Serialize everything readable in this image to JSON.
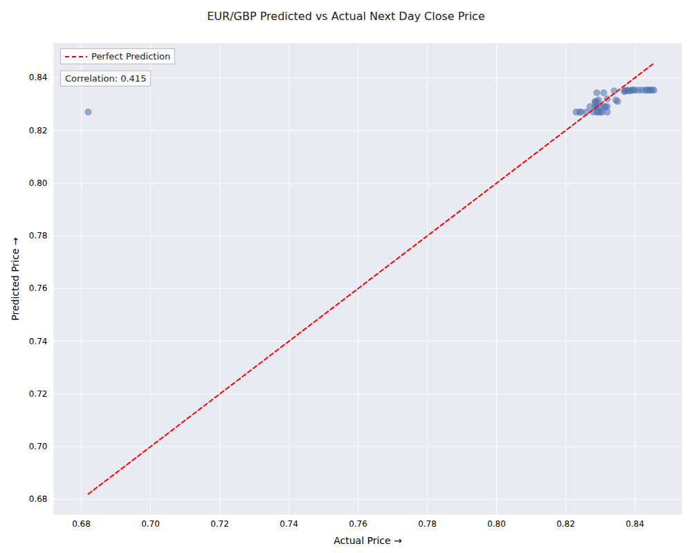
{
  "chart_data": {
    "type": "scatter",
    "title": "EUR/GBP Predicted vs Actual Next Day Close Price",
    "x_label": "Actual Price",
    "y_label": "Predicted Price",
    "annotation": "Correlation: 0.415",
    "series": [
      {
        "name": "Perfect Prediction",
        "type": "line",
        "color": "#ff0000",
        "line_style": "dashed"
      }
    ],
    "x": [
      0.682,
      0.823,
      0.824,
      0.8245,
      0.826,
      0.828,
      0.829,
      0.8295,
      0.83,
      0.8305,
      0.832,
      0.827,
      0.8285,
      0.829,
      0.83,
      0.831,
      0.8315,
      0.832,
      0.8285,
      0.829,
      0.8295,
      0.8285,
      0.832,
      0.8345,
      0.835,
      0.829,
      0.831,
      0.834,
      0.837,
      0.8375,
      0.838,
      0.8385,
      0.839,
      0.8395,
      0.84,
      0.841,
      0.842,
      0.843,
      0.8435,
      0.844,
      0.8445,
      0.845,
      0.8455,
      0.837
    ],
    "values": [
      0.827,
      0.827,
      0.827,
      0.827,
      0.827,
      0.827,
      0.827,
      0.827,
      0.827,
      0.827,
      0.827,
      0.829,
      0.829,
      0.829,
      0.829,
      0.829,
      0.829,
      0.829,
      0.831,
      0.831,
      0.8315,
      0.8305,
      0.832,
      0.8315,
      0.831,
      0.8343,
      0.8343,
      0.835,
      0.8348,
      0.8352,
      0.8352,
      0.835,
      0.8353,
      0.8353,
      0.8353,
      0.8353,
      0.8353,
      0.8353,
      0.8353,
      0.8353,
      0.8353,
      0.8353,
      0.8353,
      0.835
    ],
    "color": "#4c72b0",
    "marker": "circle",
    "xlim": [
      0.672,
      0.8536
    ],
    "ylim": [
      0.6742,
      0.8531
    ],
    "xticks": [
      0.68,
      {
        "value": 0.7,
        "label": "0.70"
      },
      0.72,
      0.74,
      0.76,
      0.78,
      {
        "value": 0.8,
        "label": "0.80"
      },
      0.82,
      0.84
    ],
    "yticks": [
      0.68,
      {
        "value": 0.7,
        "label": "0.70"
      },
      0.72,
      0.74,
      0.76,
      0.78,
      {
        "value": 0.8,
        "label": "0.80"
      },
      0.82,
      0.84
    ],
    "grid": true,
    "legend": "upper left"
  }
}
